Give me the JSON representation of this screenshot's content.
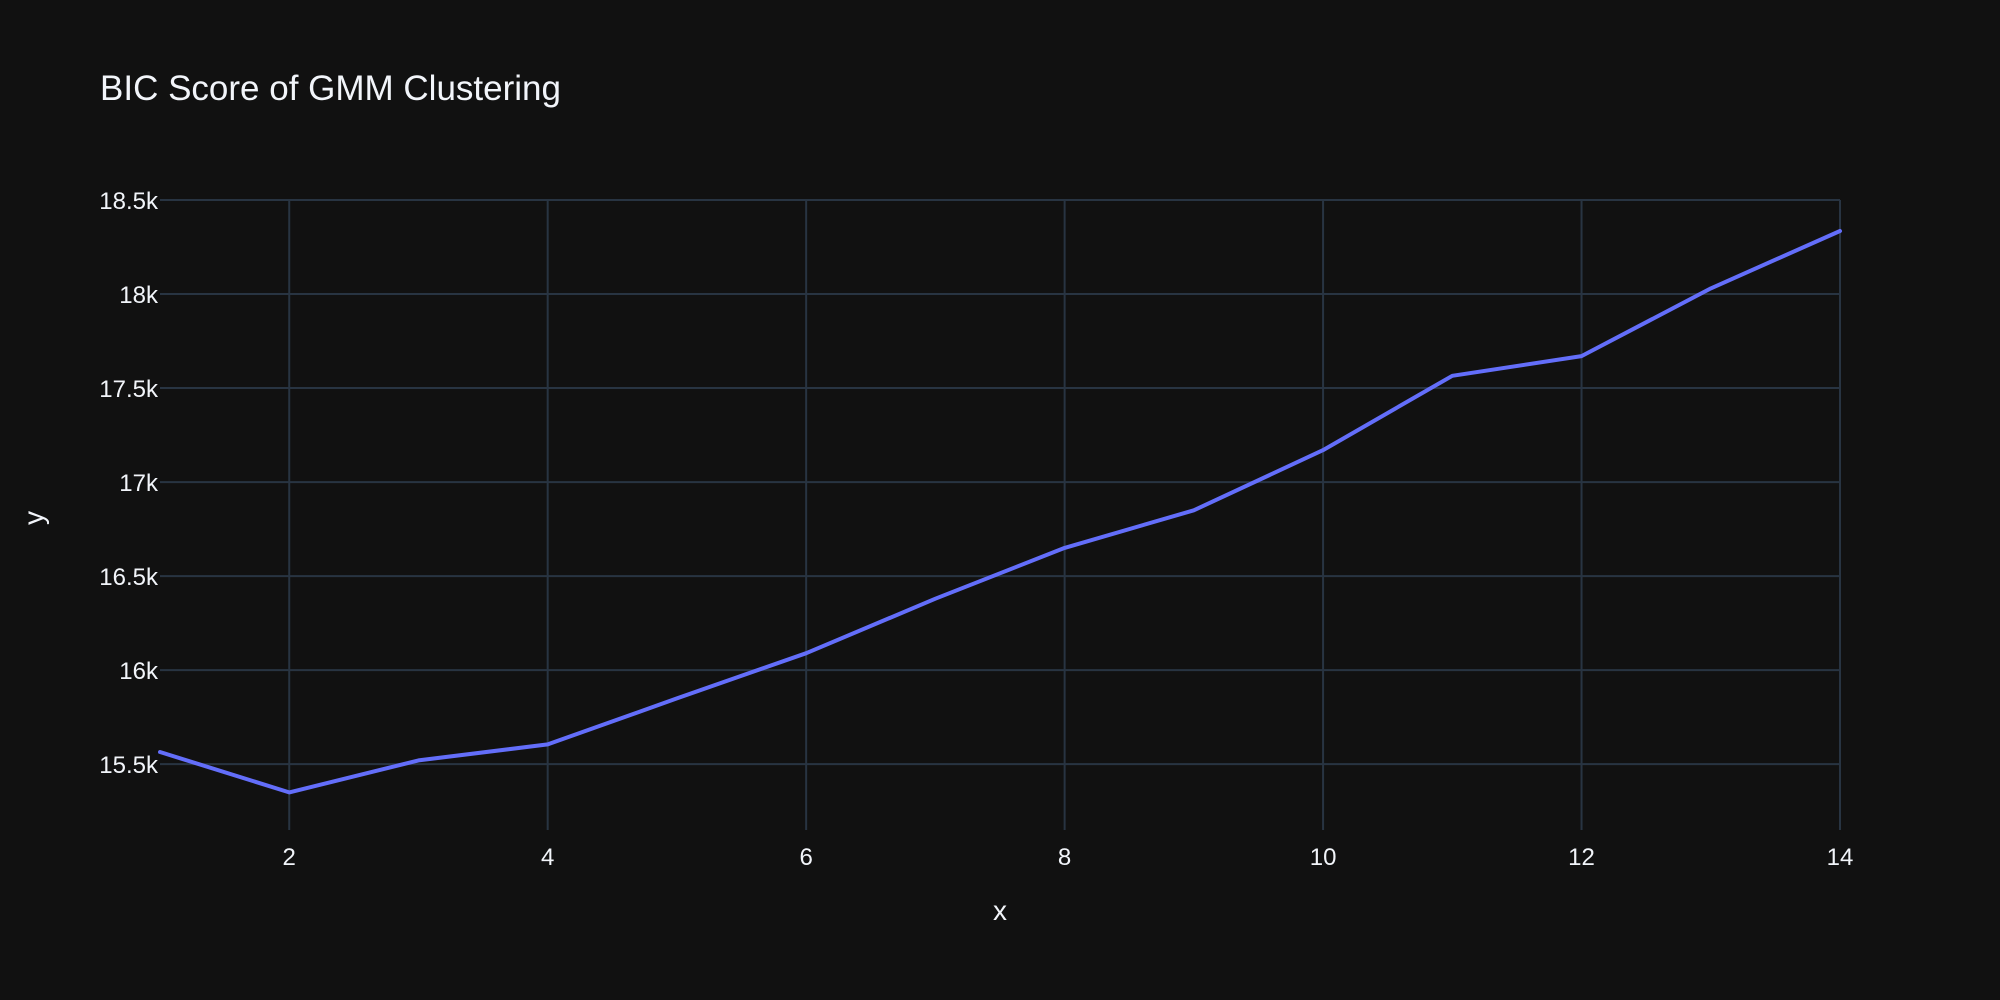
{
  "theme": {
    "background": "#111111",
    "grid_color": "#283442",
    "text_color": "#f2f5fa",
    "line_color": "#636efa"
  },
  "chart_data": {
    "type": "line",
    "title": "BIC Score of GMM Clustering",
    "xlabel": "x",
    "ylabel": "y",
    "xlim": [
      1,
      14
    ],
    "ylim": [
      15150,
      18500
    ],
    "grid": true,
    "legend": "none",
    "x_ticks": [
      2,
      4,
      6,
      8,
      10,
      12,
      14
    ],
    "x_tick_labels": [
      "2",
      "4",
      "6",
      "8",
      "10",
      "12",
      "14"
    ],
    "y_ticks": [
      15500,
      16000,
      16500,
      17000,
      17500,
      18000,
      18500
    ],
    "y_tick_labels": [
      "15.5k",
      "16k",
      "16.5k",
      "17k",
      "17.5k",
      "18k",
      "18.5k"
    ],
    "series": [
      {
        "x": [
          1,
          2,
          3,
          4,
          5,
          6,
          7,
          8,
          9,
          10,
          11,
          12,
          13,
          14
        ],
        "values": [
          15565,
          15350,
          15520,
          15605,
          15850,
          16090,
          16380,
          16650,
          16850,
          17170,
          17565,
          17670,
          18030,
          18335
        ]
      }
    ]
  }
}
